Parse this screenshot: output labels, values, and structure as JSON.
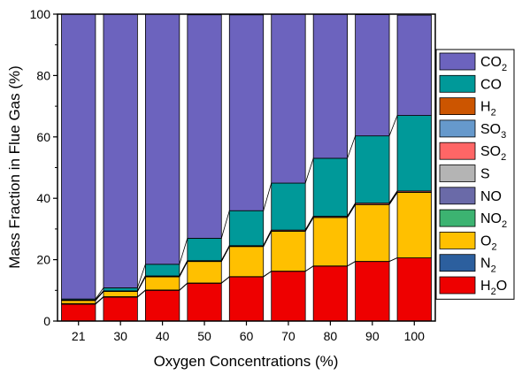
{
  "chart_data": {
    "type": "bar",
    "stacked": true,
    "xlabel": "Oxygen Concentrations (%)",
    "ylabel": "Mass Fraction in Flue Gas (%)",
    "ylim": [
      0,
      100
    ],
    "yticks": [
      0,
      20,
      40,
      60,
      80,
      100
    ],
    "categories": [
      "21",
      "30",
      "40",
      "50",
      "60",
      "70",
      "80",
      "90",
      "100"
    ],
    "legend_position": "right",
    "series": [
      {
        "name": "H2O",
        "label_main": "H",
        "label_sub": "2",
        "label_tail": "O",
        "color": "#ee0000",
        "values": [
          5.5,
          7.8,
          10.0,
          12.3,
          14.4,
          16.2,
          17.9,
          19.4,
          20.6
        ]
      },
      {
        "name": "N2",
        "label_main": "N",
        "label_sub": "2",
        "label_tail": "",
        "color": "#2c5f9e",
        "values": [
          0.2,
          0.15,
          0.12,
          0.1,
          0.08,
          0.07,
          0.06,
          0.05,
          0.0
        ]
      },
      {
        "name": "O2",
        "label_main": "O",
        "label_sub": "2",
        "label_tail": "",
        "color": "#ffc000",
        "values": [
          1.0,
          1.7,
          4.3,
          7.0,
          9.8,
          13.0,
          15.8,
          18.5,
          21.3
        ]
      },
      {
        "name": "NO2",
        "label_main": "NO",
        "label_sub": "2",
        "label_tail": "",
        "color": "#3cb371",
        "values": [
          0.03,
          0.03,
          0.03,
          0.03,
          0.03,
          0.03,
          0.03,
          0.03,
          0.03
        ]
      },
      {
        "name": "NO",
        "label_main": "NO",
        "label_sub": "",
        "label_tail": "",
        "color": "#6a6aa8",
        "values": [
          0.05,
          0.05,
          0.05,
          0.05,
          0.05,
          0.05,
          0.05,
          0.05,
          0.05
        ]
      },
      {
        "name": "S",
        "label_main": "S",
        "label_sub": "",
        "label_tail": "",
        "color": "#b4b4b4",
        "values": [
          0.0,
          0.0,
          0.0,
          0.0,
          0.0,
          0.0,
          0.0,
          0.0,
          0.0
        ]
      },
      {
        "name": "SO2",
        "label_main": "SO",
        "label_sub": "2",
        "label_tail": "",
        "color": "#ff6666",
        "values": [
          0.1,
          0.1,
          0.2,
          0.2,
          0.2,
          0.3,
          0.3,
          0.4,
          0.4
        ]
      },
      {
        "name": "SO3",
        "label_main": "SO",
        "label_sub": "3",
        "label_tail": "",
        "color": "#6699cc",
        "values": [
          0.0,
          0.0,
          0.0,
          0.0,
          0.0,
          0.0,
          0.0,
          0.0,
          0.0
        ]
      },
      {
        "name": "H2",
        "label_main": "H",
        "label_sub": "2",
        "label_tail": "",
        "color": "#cc5500",
        "values": [
          0.0,
          0.0,
          0.0,
          0.0,
          0.0,
          0.0,
          0.0,
          0.0,
          0.0
        ]
      },
      {
        "name": "CO",
        "label_main": "CO",
        "label_sub": "",
        "label_tail": "",
        "color": "#009999",
        "values": [
          0.3,
          1.0,
          3.8,
          7.3,
          11.4,
          15.3,
          18.9,
          21.9,
          24.6
        ]
      },
      {
        "name": "CO2",
        "label_main": "CO",
        "label_sub": "2",
        "label_tail": "",
        "color": "#6c63be",
        "values": [
          92.8,
          89.2,
          81.5,
          72.8,
          63.8,
          55.0,
          46.9,
          39.5,
          32.7
        ]
      }
    ]
  }
}
